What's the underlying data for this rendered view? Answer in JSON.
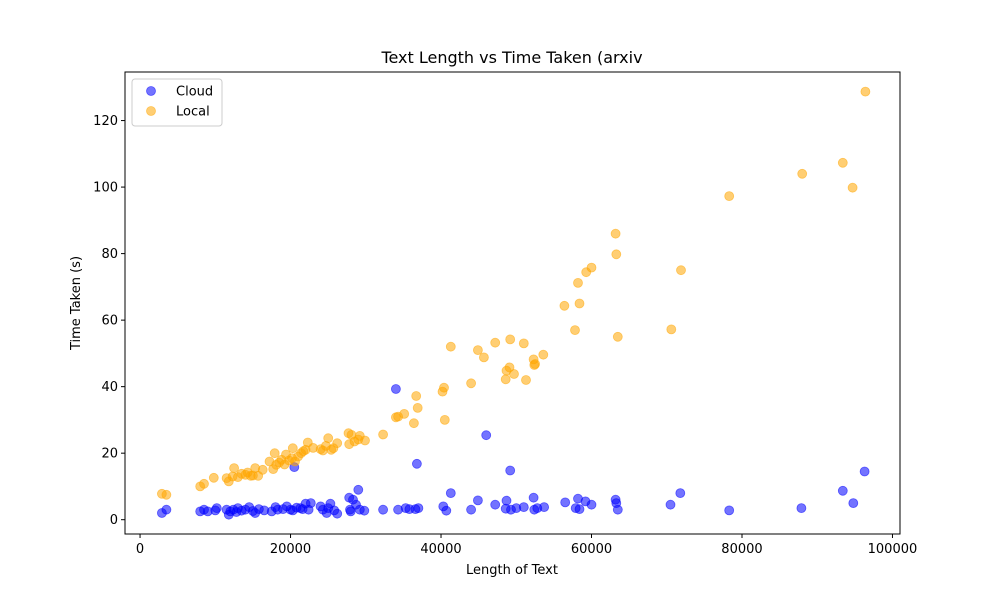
{
  "chart_data": {
    "type": "scatter",
    "title": "Text Length vs Time Taken (arxiv",
    "xlabel": "Length of Text",
    "ylabel": "Time Taken (s)",
    "xlim": [
      -2000,
      101000
    ],
    "ylim": [
      -4.3,
      134.6
    ],
    "xticks": [
      0,
      20000,
      40000,
      60000,
      80000,
      100000
    ],
    "yticks": [
      0,
      20,
      40,
      60,
      80,
      100,
      120
    ],
    "grid": false,
    "legend_position": "top-left",
    "series": [
      {
        "name": "Cloud",
        "color": "#0000ff",
        "points": [
          [
            2900,
            2
          ],
          [
            3500,
            3
          ],
          [
            8000,
            2.5
          ],
          [
            8500,
            3
          ],
          [
            9000,
            2.5
          ],
          [
            10000,
            2.8
          ],
          [
            10200,
            3.5
          ],
          [
            11500,
            3
          ],
          [
            11800,
            1.5
          ],
          [
            12000,
            2.5
          ],
          [
            12400,
            3
          ],
          [
            12800,
            2.3
          ],
          [
            13000,
            3.5
          ],
          [
            13500,
            2.7
          ],
          [
            14000,
            3
          ],
          [
            14500,
            3.8
          ],
          [
            15000,
            2.6
          ],
          [
            15300,
            2
          ],
          [
            15800,
            3.2
          ],
          [
            16500,
            2.8
          ],
          [
            17500,
            2.5
          ],
          [
            18000,
            3.8
          ],
          [
            18300,
            3
          ],
          [
            19000,
            3.2
          ],
          [
            19500,
            4
          ],
          [
            20000,
            3
          ],
          [
            20300,
            2.8
          ],
          [
            20500,
            15.8
          ],
          [
            20800,
            3.6
          ],
          [
            21300,
            3.5
          ],
          [
            21600,
            3.2
          ],
          [
            22000,
            4.8
          ],
          [
            22400,
            3
          ],
          [
            22700,
            5
          ],
          [
            24000,
            4
          ],
          [
            24300,
            3
          ],
          [
            24800,
            2
          ],
          [
            25000,
            3.5
          ],
          [
            25300,
            4.8
          ],
          [
            25800,
            2.8
          ],
          [
            26200,
            1.8
          ],
          [
            27800,
            6.6
          ],
          [
            27900,
            3
          ],
          [
            28000,
            2.5
          ],
          [
            28300,
            6
          ],
          [
            28700,
            4.5
          ],
          [
            29000,
            9
          ],
          [
            29200,
            3
          ],
          [
            29800,
            2.7
          ],
          [
            32300,
            3
          ],
          [
            34000,
            39.3
          ],
          [
            34300,
            3
          ],
          [
            35300,
            3.5
          ],
          [
            35800,
            3.2
          ],
          [
            36600,
            3.2
          ],
          [
            36800,
            16.8
          ],
          [
            37000,
            3.5
          ],
          [
            40300,
            4
          ],
          [
            40700,
            2.7
          ],
          [
            41300,
            8
          ],
          [
            44000,
            3
          ],
          [
            44900,
            5.8
          ],
          [
            46000,
            25.4
          ],
          [
            47200,
            4.5
          ],
          [
            48600,
            3.3
          ],
          [
            48700,
            5.7
          ],
          [
            49200,
            14.8
          ],
          [
            49300,
            3
          ],
          [
            50000,
            3.5
          ],
          [
            51000,
            3.8
          ],
          [
            52300,
            6.6
          ],
          [
            52400,
            3
          ],
          [
            52800,
            3.5
          ],
          [
            53700,
            3.8
          ],
          [
            56500,
            5.2
          ],
          [
            57900,
            3.5
          ],
          [
            58200,
            6.3
          ],
          [
            58400,
            3.2
          ],
          [
            59200,
            5.5
          ],
          [
            60000,
            4.5
          ],
          [
            63200,
            6
          ],
          [
            63300,
            5
          ],
          [
            63500,
            3
          ],
          [
            70500,
            4.5
          ],
          [
            71800,
            8
          ],
          [
            78300,
            2.8
          ],
          [
            87900,
            3.5
          ],
          [
            93400,
            8.7
          ],
          [
            94800,
            5
          ],
          [
            96300,
            14.5
          ]
        ]
      },
      {
        "name": "Local",
        "color": "#ffa500",
        "points": [
          [
            2900,
            7.8
          ],
          [
            3500,
            7.5
          ],
          [
            8000,
            10
          ],
          [
            8500,
            10.8
          ],
          [
            9800,
            12.6
          ],
          [
            11500,
            12.5
          ],
          [
            11800,
            11.5
          ],
          [
            12300,
            13
          ],
          [
            12500,
            15.5
          ],
          [
            13000,
            12.8
          ],
          [
            13500,
            13.8
          ],
          [
            14000,
            13.5
          ],
          [
            14300,
            14.2
          ],
          [
            14700,
            13.2
          ],
          [
            15000,
            13.3
          ],
          [
            15300,
            15.5
          ],
          [
            15700,
            13.2
          ],
          [
            16300,
            15
          ],
          [
            17200,
            17.5
          ],
          [
            17700,
            15.2
          ],
          [
            17900,
            20
          ],
          [
            18100,
            16.5
          ],
          [
            18500,
            17.2
          ],
          [
            18800,
            18
          ],
          [
            19200,
            16.6
          ],
          [
            19400,
            19.6
          ],
          [
            19800,
            17.8
          ],
          [
            20200,
            18.5
          ],
          [
            20300,
            21.5
          ],
          [
            20600,
            17.5
          ],
          [
            21000,
            19
          ],
          [
            21400,
            20
          ],
          [
            21700,
            20.6
          ],
          [
            22000,
            21
          ],
          [
            22300,
            23.2
          ],
          [
            23000,
            21.6
          ],
          [
            24000,
            21.2
          ],
          [
            24300,
            20.8
          ],
          [
            24700,
            22.2
          ],
          [
            25000,
            24.5
          ],
          [
            25400,
            21
          ],
          [
            25700,
            21.5
          ],
          [
            26200,
            23
          ],
          [
            27700,
            26
          ],
          [
            27800,
            22.7
          ],
          [
            28100,
            25.5
          ],
          [
            28500,
            23.5
          ],
          [
            29000,
            24.1
          ],
          [
            29200,
            25.2
          ],
          [
            29900,
            23.8
          ],
          [
            32300,
            25.6
          ],
          [
            34000,
            30.8
          ],
          [
            34300,
            31
          ],
          [
            35100,
            31.8
          ],
          [
            36400,
            29
          ],
          [
            36700,
            37.2
          ],
          [
            36900,
            33.6
          ],
          [
            40200,
            38.5
          ],
          [
            40400,
            39.7
          ],
          [
            40500,
            30
          ],
          [
            41300,
            52
          ],
          [
            44000,
            41
          ],
          [
            44900,
            51
          ],
          [
            45700,
            48.8
          ],
          [
            47200,
            53.2
          ],
          [
            48600,
            42.2
          ],
          [
            48700,
            44.8
          ],
          [
            49100,
            45.8
          ],
          [
            49200,
            54.2
          ],
          [
            49700,
            43.8
          ],
          [
            51000,
            53
          ],
          [
            51300,
            42
          ],
          [
            52300,
            48.2
          ],
          [
            52400,
            46.5
          ],
          [
            52500,
            46.8
          ],
          [
            53600,
            49.6
          ],
          [
            56400,
            64.3
          ],
          [
            57800,
            57
          ],
          [
            58200,
            71.2
          ],
          [
            58400,
            65
          ],
          [
            59300,
            74.4
          ],
          [
            60000,
            75.8
          ],
          [
            63200,
            86
          ],
          [
            63300,
            79.8
          ],
          [
            63500,
            55
          ],
          [
            70600,
            57.2
          ],
          [
            71900,
            75
          ],
          [
            78300,
            97.3
          ],
          [
            88000,
            104
          ],
          [
            93400,
            107.3
          ],
          [
            94700,
            99.8
          ],
          [
            96400,
            128.7
          ]
        ]
      }
    ]
  }
}
